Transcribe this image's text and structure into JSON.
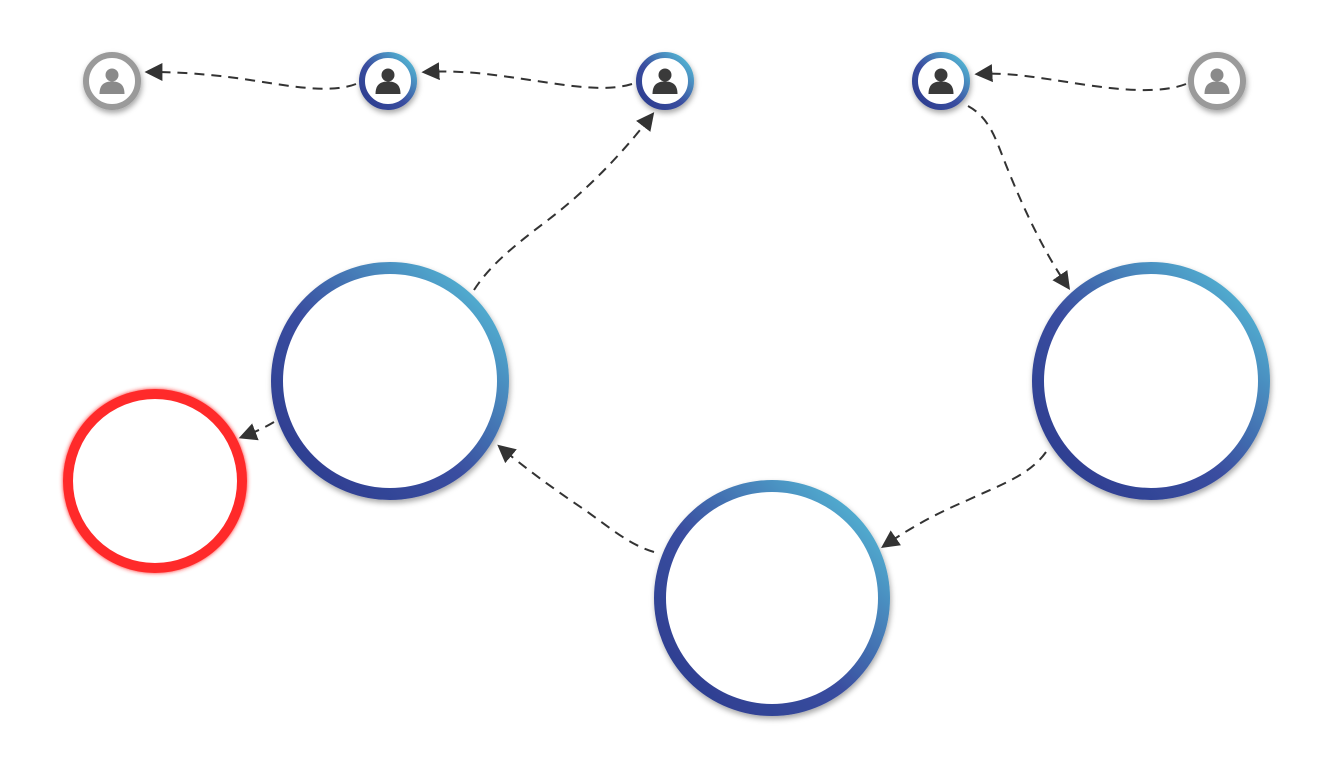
{
  "colors": {
    "background": "#ffffff",
    "ring_gradient_start": "#2a3a8c",
    "ring_gradient_end": "#58c6dc",
    "alert_ring": "#ff2a2a",
    "inactive_ring": "#9a9a9a",
    "inactive_icon": "#8a8a8a",
    "active_icon": "#3a3a3a",
    "edge": "#333333"
  },
  "avatars": [
    {
      "id": "avatar-1",
      "state": "inactive",
      "icon": "user-icon"
    },
    {
      "id": "avatar-2",
      "state": "active",
      "icon": "user-icon"
    },
    {
      "id": "avatar-3",
      "state": "active",
      "icon": "user-icon"
    },
    {
      "id": "avatar-4",
      "state": "active",
      "icon": "user-icon"
    },
    {
      "id": "avatar-5",
      "state": "inactive",
      "icon": "user-icon"
    }
  ],
  "nodes": [
    {
      "id": "node-left",
      "style": "gradient"
    },
    {
      "id": "node-right",
      "style": "gradient"
    },
    {
      "id": "node-bottom",
      "style": "gradient"
    },
    {
      "id": "node-alert",
      "style": "alert"
    }
  ],
  "edges": [
    {
      "from": "avatar-2",
      "to": "avatar-1"
    },
    {
      "from": "avatar-3",
      "to": "avatar-2"
    },
    {
      "from": "avatar-5",
      "to": "avatar-4"
    },
    {
      "from": "node-left",
      "to": "avatar-3"
    },
    {
      "from": "avatar-4",
      "to": "node-right"
    },
    {
      "from": "node-right",
      "to": "node-bottom"
    },
    {
      "from": "node-bottom",
      "to": "node-left"
    },
    {
      "from": "node-left",
      "to": "node-alert"
    }
  ]
}
